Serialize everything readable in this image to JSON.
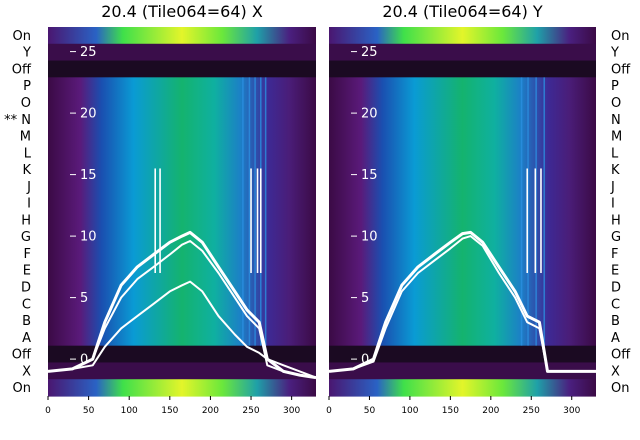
{
  "chart_data": [
    {
      "type": "heatmap",
      "title": "20.4 (Tile064=64) X",
      "row_labels": [
        "On",
        "Y",
        "Off",
        "P",
        "O",
        "** N",
        "M",
        "L",
        "K",
        "J",
        "I",
        "H",
        "G",
        "F",
        "E",
        "D",
        "C",
        "B",
        "A",
        "Off",
        "X",
        "On"
      ],
      "x_ticks": [
        0,
        50,
        100,
        150,
        200,
        250,
        300
      ],
      "xlim": [
        0,
        330
      ],
      "y_ticks": [
        0,
        5,
        10,
        15,
        20,
        25
      ],
      "ylim": [
        -3,
        27
      ],
      "overlay_lines": [
        {
          "x": [
            0,
            30,
            55,
            70,
            90,
            110,
            130,
            150,
            165,
            175,
            190,
            210,
            230,
            245,
            260,
            270,
            290,
            310,
            330
          ],
          "y": [
            -1,
            -0.8,
            0,
            3,
            6,
            7.5,
            8.5,
            9.5,
            10,
            10.3,
            9.5,
            7.5,
            5.5,
            4,
            3,
            0,
            -1,
            -1.3,
            -1.5
          ]
        },
        {
          "x": [
            0,
            30,
            55,
            70,
            90,
            110,
            130,
            150,
            165,
            175,
            190,
            210,
            230,
            245,
            260,
            270,
            290,
            310,
            330
          ],
          "y": [
            -1,
            -0.8,
            0,
            2.5,
            5,
            6.5,
            7.5,
            8.5,
            9.3,
            9.6,
            8.8,
            7,
            5,
            3.5,
            2.5,
            -0.5,
            -1,
            -1.3,
            -1.5
          ]
        },
        {
          "x": [
            0,
            30,
            55,
            70,
            90,
            110,
            130,
            150,
            165,
            175,
            190,
            210,
            230,
            245,
            260,
            270,
            290,
            310,
            330
          ],
          "y": [
            -1,
            -0.8,
            -0.5,
            1,
            2.5,
            3.5,
            4.5,
            5.5,
            6,
            6.3,
            5.5,
            3.5,
            2,
            1,
            0.5,
            0,
            -0.5,
            -1,
            -1.5
          ]
        }
      ],
      "spikes_x": [
        132,
        138,
        250,
        258,
        262
      ],
      "vertical_lines_x": [
        240,
        248,
        255,
        262,
        268
      ]
    },
    {
      "type": "heatmap",
      "title": "20.4 (Tile064=64) Y",
      "row_labels": [
        "On",
        "Y",
        "Off",
        "P",
        "O",
        "N",
        "M",
        "L",
        "K",
        "J",
        "I",
        "H",
        "G",
        "F",
        "E",
        "D",
        "C",
        "B",
        "A",
        "Off",
        "X",
        "On"
      ],
      "x_ticks": [
        0,
        50,
        100,
        150,
        200,
        250,
        300
      ],
      "xlim": [
        0,
        330
      ],
      "y_ticks": [
        0,
        5,
        10,
        15,
        20,
        25
      ],
      "ylim": [
        -3,
        27
      ],
      "overlay_lines": [
        {
          "x": [
            0,
            30,
            55,
            70,
            90,
            110,
            130,
            150,
            165,
            175,
            190,
            210,
            230,
            245,
            260,
            270,
            290,
            310,
            330
          ],
          "y": [
            -1,
            -0.8,
            0,
            3,
            6,
            7.5,
            8.5,
            9.5,
            10.2,
            10.3,
            9.5,
            7.5,
            5.5,
            3.5,
            3,
            -1,
            -1,
            -1,
            -1
          ]
        },
        {
          "x": [
            0,
            30,
            55,
            70,
            90,
            110,
            130,
            150,
            165,
            175,
            190,
            210,
            230,
            245,
            260,
            270,
            290,
            310,
            330
          ],
          "y": [
            -1,
            -0.8,
            -0.2,
            2.5,
            5.5,
            7,
            8,
            9,
            9.8,
            10,
            9.2,
            7,
            5,
            3,
            2.5,
            -1,
            -1,
            -1,
            -1
          ]
        }
      ],
      "spikes_x": [
        245,
        255,
        262
      ],
      "vertical_lines_x": [
        238,
        246,
        256,
        266
      ]
    }
  ]
}
